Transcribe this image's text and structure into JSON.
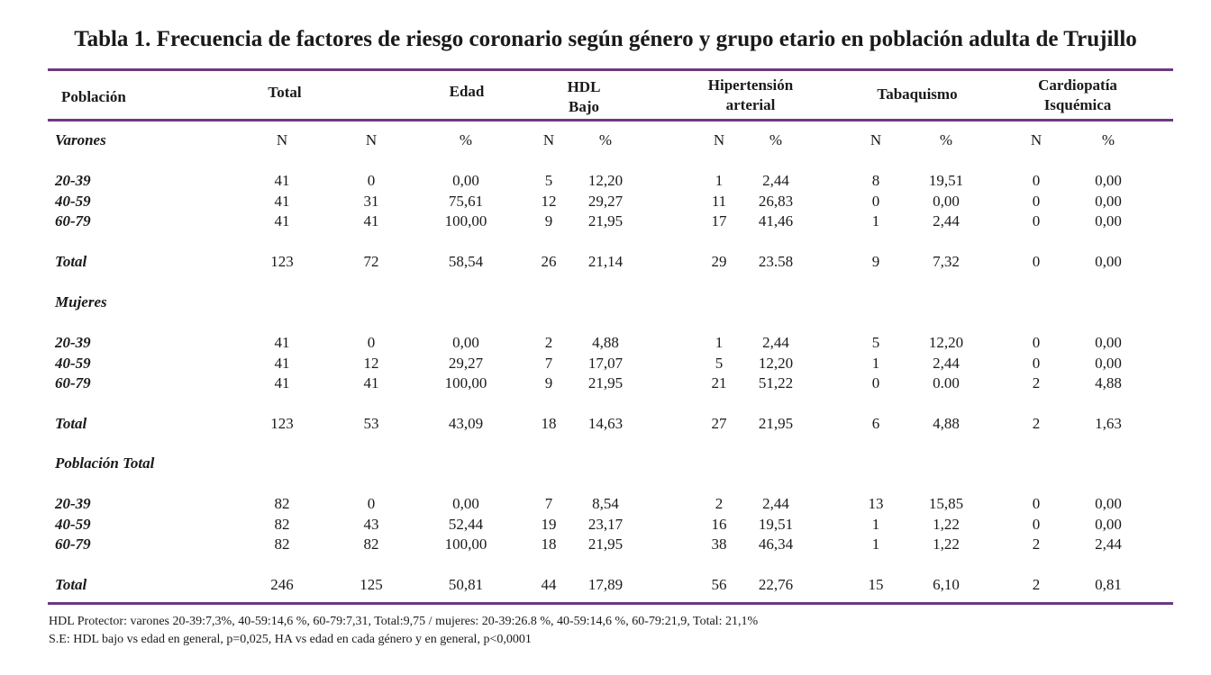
{
  "title": "Tabla 1. Frecuencia de factores de riesgo coronario según género y grupo etario en población adulta de Trujillo",
  "headers": {
    "poblacion": "Población",
    "total": "Total",
    "edad": "Edad",
    "hdl_l1": "HDL",
    "hdl_l2": "Bajo",
    "hip_l1": "Hipertensión",
    "hip_l2": "arterial",
    "tabaq": "Tabaquismo",
    "card_l1": "Cardiopatía",
    "card_l2": "Isquémica"
  },
  "subheaders": [
    "N",
    "N",
    "%",
    "N",
    "%",
    "N",
    "%",
    "N",
    "%",
    "N",
    "%"
  ],
  "groups": [
    {
      "name": "Varones",
      "rows": [
        [
          "20-39",
          "41",
          "0",
          "0,00",
          "5",
          "12,20",
          "1",
          "2,44",
          "8",
          "19,51",
          "0",
          "0,00"
        ],
        [
          "40-59",
          "41",
          "31",
          "75,61",
          "12",
          "29,27",
          "11",
          "26,83",
          "0",
          "0,00",
          "0",
          "0,00"
        ],
        [
          "60-79",
          "41",
          "41",
          "100,00",
          "9",
          "21,95",
          "17",
          "41,46",
          "1",
          "2,44",
          "0",
          "0,00"
        ]
      ],
      "total": [
        "Total",
        "123",
        "72",
        "58,54",
        "26",
        "21,14",
        "29",
        "23.58",
        "9",
        "7,32",
        "0",
        "0,00"
      ]
    },
    {
      "name": "Mujeres",
      "rows": [
        [
          "20-39",
          "41",
          "0",
          "0,00",
          "2",
          "4,88",
          "1",
          "2,44",
          "5",
          "12,20",
          "0",
          "0,00"
        ],
        [
          "40-59",
          "41",
          "12",
          "29,27",
          "7",
          "17,07",
          "5",
          "12,20",
          "1",
          "2,44",
          "0",
          "0,00"
        ],
        [
          "60-79",
          "41",
          "41",
          "100,00",
          "9",
          "21,95",
          "21",
          "51,22",
          "0",
          "0.00",
          "2",
          "4,88"
        ]
      ],
      "total": [
        "Total",
        "123",
        "53",
        "43,09",
        "18",
        "14,63",
        "27",
        "21,95",
        "6",
        "4,88",
        "2",
        "1,63"
      ]
    },
    {
      "name": "Población Total",
      "rows": [
        [
          "20-39",
          "82",
          "0",
          "0,00",
          "7",
          "8,54",
          "2",
          "2,44",
          "13",
          "15,85",
          "0",
          "0,00"
        ],
        [
          "40-59",
          "82",
          "43",
          "52,44",
          "19",
          "23,17",
          "16",
          "19,51",
          "1",
          "1,22",
          "0",
          "0,00"
        ],
        [
          "60-79",
          "82",
          "82",
          "100,00",
          "18",
          "21,95",
          "38",
          "46,34",
          "1",
          "1,22",
          "2",
          "2,44"
        ]
      ],
      "total": [
        "Total",
        "246",
        "125",
        "50,81",
        "44",
        "17,89",
        "56",
        "22,76",
        "15",
        "6,10",
        "2",
        "0,81"
      ]
    }
  ],
  "footnotes": [
    "HDL Protector: varones 20-39:7,3%, 40-59:14,6 %, 60-79:7,31, Total:9,75 /  mujeres: 20-39:26.8 %, 40-59:14,6 %, 60-79:21,9, Total: 21,1%",
    "S.E: HDL bajo vs edad en general, p=0,025, HA vs edad en cada género y en general, p<0,0001"
  ],
  "colors": {
    "rule": "#6b3a7f",
    "text": "#1a1a1a"
  }
}
